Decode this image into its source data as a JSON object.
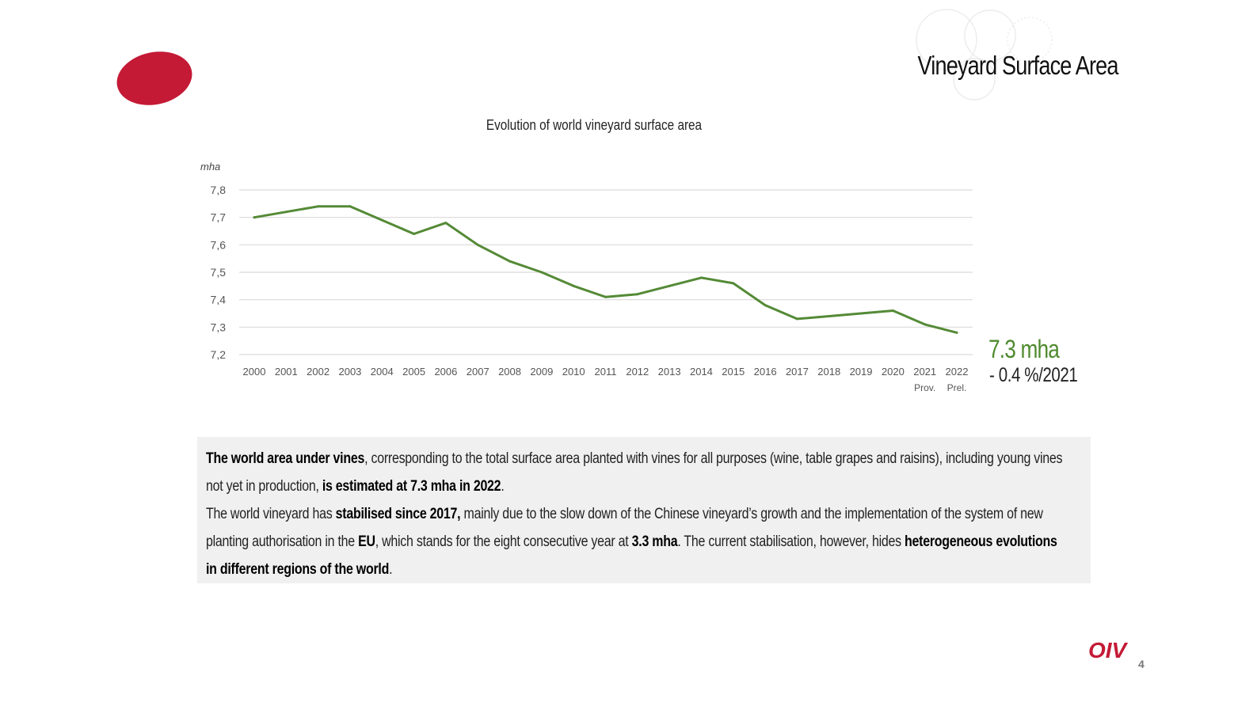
{
  "header": {
    "title": "Vineyard Surface Area"
  },
  "summary": {
    "value": "7.3 mha",
    "change": "- 0.4 %/2021"
  },
  "info": {
    "p1_b1": "The world area under vines",
    "p1_t1": ", corresponding to the total surface area planted with vines for all purposes (wine, table grapes and raisins), including young vines not yet in production, ",
    "p1_b2": "is estimated at 7.3 mha in 2022",
    "p1_t2": ".",
    "p2_t1": "The world vineyard has ",
    "p2_b1": "stabilised since 2017,",
    "p2_t2": " mainly due to the slow down of the Chinese vineyard’s growth  and the implementation of the system of new planting authorisation in the ",
    "p2_b2": "EU",
    "p2_t3": ", which stands for the eight consecutive year at ",
    "p2_b3": "3.3 mha",
    "p2_t4": ". The current stabilisation, however, hides ",
    "p2_b4": "heterogeneous evolutions in different regions of the world",
    "p2_t5": "."
  },
  "footer": {
    "brand": "OIV",
    "page_number": "4"
  },
  "colors": {
    "accent_red": "#c41a36",
    "series_green": "#548a36",
    "grid": "#d9d9d9"
  },
  "chart_data": {
    "type": "line",
    "title": "Evolution of world vineyard surface area",
    "ylabel": "mha",
    "xlabel": "",
    "ylim": [
      7.2,
      7.8
    ],
    "yticks": [
      "7,2",
      "7,3",
      "7,4",
      "7,5",
      "7,6",
      "7,7",
      "7,8"
    ],
    "ytick_values": [
      7.2,
      7.3,
      7.4,
      7.5,
      7.6,
      7.7,
      7.8
    ],
    "grid": true,
    "categories": [
      "2000",
      "2001",
      "2002",
      "2003",
      "2004",
      "2005",
      "2006",
      "2007",
      "2008",
      "2009",
      "2010",
      "2011",
      "2012",
      "2013",
      "2014",
      "2015",
      "2016",
      "2017",
      "2018",
      "2019",
      "2020",
      "2021",
      "2022"
    ],
    "category_sublabels": [
      "",
      "",
      "",
      "",
      "",
      "",
      "",
      "",
      "",
      "",
      "",
      "",
      "",
      "",
      "",
      "",
      "",
      "",
      "",
      "",
      "",
      "Prov.",
      "Prel."
    ],
    "series": [
      {
        "name": "World vineyard surface area",
        "values": [
          7.7,
          7.72,
          7.74,
          7.74,
          7.69,
          7.64,
          7.68,
          7.6,
          7.54,
          7.5,
          7.45,
          7.41,
          7.42,
          7.45,
          7.48,
          7.46,
          7.38,
          7.33,
          7.34,
          7.35,
          7.36,
          7.31,
          7.28
        ]
      }
    ]
  }
}
